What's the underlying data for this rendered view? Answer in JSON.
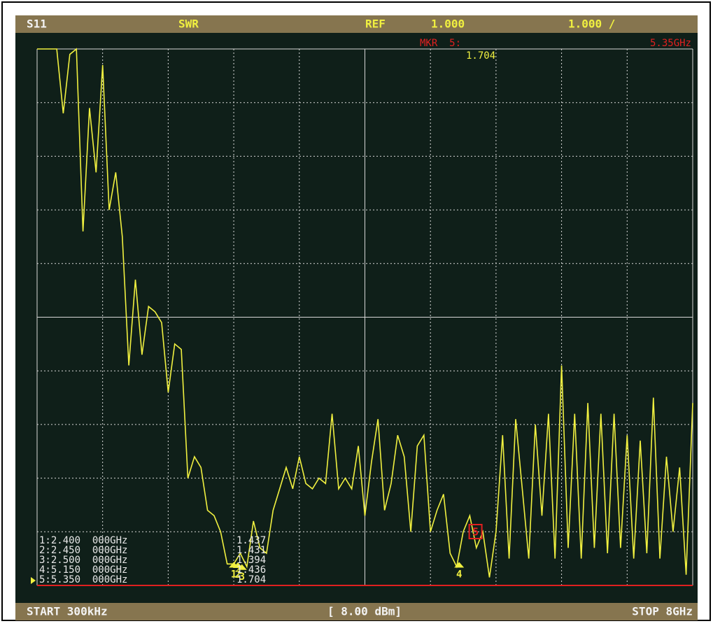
{
  "header": {
    "param": "S11",
    "format": "SWR",
    "ref_label": "REF",
    "ref_value": "1.000",
    "scale": "1.000 /",
    "marker_title": "MKR  5:",
    "marker_freq": "5.35GHz",
    "marker_value": "1.704"
  },
  "footer": {
    "start": "START 300kHz",
    "power": "[ 8.00 dBm]",
    "stop": "STOP 8GHz"
  },
  "chart_data": {
    "type": "line",
    "xlim": [
      0.0003,
      8
    ],
    "ylim": [
      1,
      11
    ],
    "xticks": [
      0.0003,
      0.8,
      1.6,
      2.4,
      3.2,
      4,
      4.8,
      5.6,
      6.4,
      7.2,
      8
    ],
    "yticks": [
      1,
      2,
      3,
      4,
      5,
      6,
      7,
      8,
      9,
      10,
      11
    ],
    "grid": true,
    "series": [
      {
        "name": "S11",
        "color": "#f0f040",
        "x": [
          0.0003,
          0.08,
          0.16,
          0.24,
          0.32,
          0.4,
          0.48,
          0.56,
          0.64,
          0.72,
          0.8,
          0.88,
          0.96,
          1.04,
          1.12,
          1.2,
          1.28,
          1.36,
          1.44,
          1.52,
          1.6,
          1.68,
          1.76,
          1.84,
          1.92,
          2,
          2.08,
          2.16,
          2.24,
          2.32,
          2.4,
          2.48,
          2.56,
          2.64,
          2.72,
          2.8,
          2.88,
          2.96,
          3.04,
          3.12,
          3.2,
          3.28,
          3.36,
          3.44,
          3.52,
          3.6,
          3.68,
          3.76,
          3.84,
          3.92,
          4,
          4.08,
          4.16,
          4.24,
          4.32,
          4.4,
          4.48,
          4.56,
          4.64,
          4.72,
          4.8,
          4.88,
          4.96,
          5.04,
          5.12,
          5.2,
          5.28,
          5.36,
          5.44,
          5.52,
          5.6,
          5.68,
          5.76,
          5.84,
          5.92,
          6,
          6.08,
          6.16,
          6.24,
          6.32,
          6.4,
          6.48,
          6.56,
          6.64,
          6.72,
          6.8,
          6.88,
          6.96,
          7.04,
          7.12,
          7.2,
          7.28,
          7.36,
          7.44,
          7.52,
          7.6,
          7.68,
          7.76,
          7.84,
          7.92,
          8
        ],
        "values": [
          11,
          11,
          11,
          11,
          9.8,
          10.9,
          11,
          7.6,
          9.9,
          8.7,
          10.7,
          8.0,
          8.7,
          7.5,
          5.1,
          6.7,
          5.3,
          6.2,
          6.1,
          5.9,
          4.6,
          5.5,
          5.4,
          3.0,
          3.4,
          3.2,
          2.4,
          2.3,
          2.0,
          1.4,
          1.4,
          1.6,
          1.35,
          2.2,
          1.7,
          1.6,
          2.4,
          2.8,
          3.2,
          2.8,
          3.4,
          2.9,
          2.8,
          3.0,
          2.9,
          4.2,
          2.8,
          3.0,
          2.8,
          3.6,
          2.3,
          3.3,
          4.1,
          2.4,
          2.9,
          3.8,
          3.4,
          2.0,
          3.6,
          3.8,
          2.0,
          2.4,
          2.7,
          1.6,
          1.35,
          2.0,
          2.3,
          1.7,
          2.0,
          1.15,
          2.0,
          3.8,
          1.5,
          4.1,
          2.8,
          1.5,
          4.0,
          2.3,
          4.2,
          1.5,
          5.1,
          1.7,
          4.2,
          1.5,
          4.4,
          1.7,
          4.2,
          1.6,
          4.2,
          1.7,
          3.8,
          1.5,
          3.7,
          1.6,
          4.5,
          1.5,
          3.4,
          2.0,
          3.2,
          1.2,
          4.4
        ]
      }
    ],
    "markers": [
      {
        "id": "1",
        "x": 2.4,
        "label": "1:2.400  000GHz",
        "value": 1.437
      },
      {
        "id": "2",
        "x": 2.45,
        "label": "2:2.450  000GHz",
        "value": 1.431
      },
      {
        "id": "3",
        "x": 2.5,
        "label": "3:2.500  000GHz",
        "value": 1.394
      },
      {
        "id": "4",
        "x": 5.15,
        "label": "4:5.150  000GHz",
        "value": 1.436
      },
      {
        "id": "5",
        "x": 5.35,
        "label": "5:5.350  000GHz",
        "value": 1.704
      }
    ]
  }
}
